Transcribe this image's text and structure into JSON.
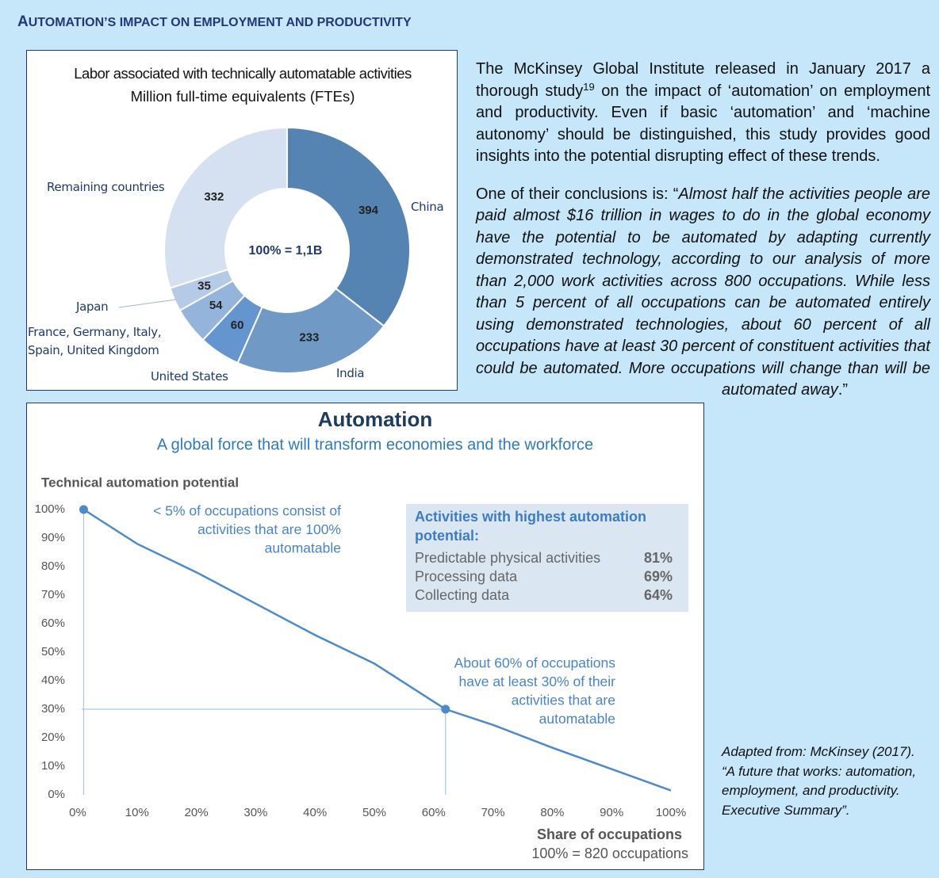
{
  "header": {
    "title": "AUTOMATION’S IMPACT ON EMPLOYMENT AND PRODUCTIVITY"
  },
  "chart_data": [
    {
      "type": "pie",
      "title": "Labor associated with technically automatable activities",
      "subtitle": "Million full-time equivalents (FTEs)",
      "center_label": "100% = 1,1B",
      "categories": [
        "China",
        "India",
        "United States",
        "France, Germany, Italy, Spain, United Kingdom",
        "Japan",
        "Remaining countries"
      ],
      "values": [
        394,
        233,
        60,
        54,
        35,
        332
      ],
      "colors": [
        "#5583b2",
        "#7099c6",
        "#6595cf",
        "#94b4dc",
        "#b5cae6",
        "#d5e0f0"
      ]
    },
    {
      "type": "line",
      "title": "Automation",
      "subtitle": "A global force that will transform economies and the workforce",
      "ylabel": "Technical automation potential",
      "xlabel": "Share of occupations",
      "xlabel_note": "100% = 820 occupations",
      "color": "#4d8ac8",
      "x": [
        1,
        10,
        20,
        30,
        40,
        50,
        62,
        70,
        80,
        90,
        100
      ],
      "values": [
        100,
        88,
        78,
        67,
        56,
        46,
        30,
        24.5,
        16.5,
        9,
        1.5
      ],
      "xlim": [
        0,
        100
      ],
      "ylim": [
        0,
        100
      ],
      "xticks": [
        {
          "value": 0,
          "label": "0%"
        },
        {
          "value": 10,
          "label": "10%"
        },
        {
          "value": 20,
          "label": "20%"
        },
        {
          "value": 30,
          "label": "30%"
        },
        {
          "value": 40,
          "label": "40%"
        },
        {
          "value": 50,
          "label": "50%"
        },
        {
          "value": 60,
          "label": "60%"
        },
        {
          "value": 70,
          "label": "70%"
        },
        {
          "value": 80,
          "label": "80%"
        },
        {
          "value": 90,
          "label": "90%"
        },
        {
          "value": 100,
          "label": "100%"
        }
      ],
      "yticks": [
        {
          "value": 0,
          "label": "0%"
        },
        {
          "value": 10,
          "label": "10%"
        },
        {
          "value": 20,
          "label": "20%"
        },
        {
          "value": 30,
          "label": "30%"
        },
        {
          "value": 40,
          "label": "40%"
        },
        {
          "value": 50,
          "label": "50%"
        },
        {
          "value": 60,
          "label": "60%"
        },
        {
          "value": 70,
          "label": "70%"
        },
        {
          "value": 80,
          "label": "80%"
        },
        {
          "value": 90,
          "label": "90%"
        },
        {
          "value": 100,
          "label": "100%"
        }
      ],
      "points": [
        {
          "x": 1,
          "y": 100
        },
        {
          "x": 62,
          "y": 30
        }
      ],
      "annotations": [
        {
          "lines": [
            "< 5% of occupations consist of",
            "activities that are 100%",
            "automatable"
          ]
        },
        {
          "lines": [
            "About 60% of occupations",
            "have at least 30% of their",
            "activities that are",
            "automatable"
          ]
        }
      ],
      "inset": {
        "title_lines": [
          "Activities with highest automation",
          "potential:"
        ],
        "rows": [
          {
            "label": "Predictable physical activities",
            "value": "81%"
          },
          {
            "label": "Processing data",
            "value": "69%"
          },
          {
            "label": "Collecting data",
            "value": "64%"
          }
        ]
      }
    }
  ],
  "text": {
    "p1_before": "The McKinsey Global Institute released in January 2017 a thorough study",
    "p1_sup": "19",
    "p1_after": " on the impact of ‘automation’ on employment and productivity. Even if basic ‘automation’ and ‘machine autonomy’ should be distinguished, this study provides good insights into the potential disrupting effect of these trends.",
    "p2_intro": "One of their conclusions is: “",
    "p2_quote": "Almost half the activities people are paid almost $16 trillion in wages to do in the global economy have the potential to be automated by adapting currently demonstrated technology, according to our analysis of more than 2,000 work activities across 800 occupations. While less than 5 percent of all occupations can be automated entirely using demonstrated technologies, about 60 percent of all occupations have at least 30 percent of constituent activities that could be automated. More occupations will change than will be automated away",
    "p2_end": ".”"
  },
  "source": "Adapted from: McKinsey (2017). “A future that works: automation, employment, and productivity. Executive Summary”."
}
